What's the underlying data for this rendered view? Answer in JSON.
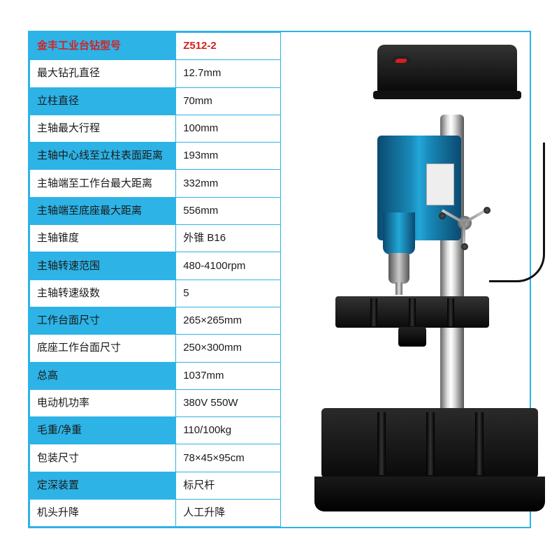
{
  "table": {
    "border_color": "#2db3e6",
    "blue_bg": "#2db3e6",
    "white_bg": "#ffffff",
    "text_color": "#1a1a1a",
    "header_color": "#d62020",
    "rows": [
      {
        "label": "金丰工业台钻型号",
        "value": "Z512-2",
        "header": true
      },
      {
        "label": "最大钻孔直径",
        "value": "12.7mm"
      },
      {
        "label": "立柱直径",
        "value": "70mm",
        "blue": true
      },
      {
        "label": "主轴最大行程",
        "value": "100mm"
      },
      {
        "label": "主轴中心线至立柱表面距离",
        "value": "193mm",
        "blue": true
      },
      {
        "label": "主轴端至工作台最大距离",
        "value": "332mm"
      },
      {
        "label": "主轴端至底座最大距离",
        "value": "556mm",
        "blue": true
      },
      {
        "label": "主轴锥度",
        "value": "外锥 B16"
      },
      {
        "label": "主轴转速范围",
        "value": "480-4100rpm",
        "blue": true
      },
      {
        "label": "主轴转速级数",
        "value": "5"
      },
      {
        "label": "工作台面尺寸",
        "value": "265×265mm",
        "blue": true
      },
      {
        "label": "底座工作台面尺寸",
        "value": "250×300mm"
      },
      {
        "label": "总高",
        "value": "1037mm",
        "blue": true
      },
      {
        "label": "电动机功率",
        "value": "380V 550W"
      },
      {
        "label": "毛重/净重",
        "value": "110/100kg",
        "blue": true
      },
      {
        "label": "包装尺寸",
        "value": "78×45×95cm"
      },
      {
        "label": "定深装置",
        "value": "标尺杆",
        "blue": true
      },
      {
        "label": "机头升降",
        "value": "人工升降"
      }
    ]
  },
  "drill": {
    "base_color": "#1a1a1a",
    "body_color": "#1989b8",
    "column_color": "#c0c0c0",
    "badge_color": "#d62020"
  }
}
